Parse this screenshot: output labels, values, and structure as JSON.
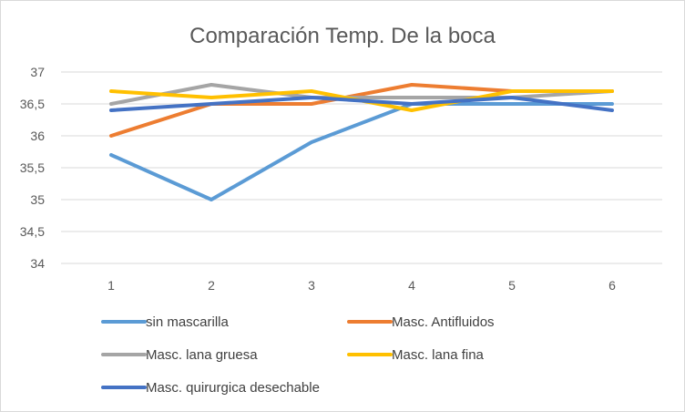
{
  "chart_data": {
    "type": "line",
    "title": "Comparación  Temp.  De la boca",
    "x": [
      1,
      2,
      3,
      4,
      5,
      6
    ],
    "x_tick_labels": [
      "1",
      "2",
      "3",
      "4",
      "5",
      "6"
    ],
    "ylim": [
      34,
      37
    ],
    "y_tick_labels": [
      "34",
      "34,5",
      "35",
      "35,5",
      "36",
      "36,5",
      "37"
    ],
    "y_ticks": [
      34,
      34.5,
      35,
      35.5,
      36,
      36.5,
      37
    ],
    "grid": true,
    "legend_position": "bottom",
    "series": [
      {
        "name": "sin mascarilla",
        "color": "#5B9BD5",
        "values": [
          35.7,
          35.0,
          35.9,
          36.5,
          36.5,
          36.5
        ]
      },
      {
        "name": "Masc. Antifluidos",
        "color": "#ED7D31",
        "values": [
          36.0,
          36.5,
          36.5,
          36.8,
          36.7,
          36.7
        ]
      },
      {
        "name": "Masc. lana gruesa",
        "color": "#A5A5A5",
        "values": [
          36.5,
          36.8,
          36.6,
          36.6,
          36.6,
          36.7
        ]
      },
      {
        "name": "Masc. lana fina",
        "color": "#FFC000",
        "values": [
          36.7,
          36.6,
          36.7,
          36.4,
          36.7,
          36.7
        ]
      },
      {
        "name": "Masc. quirurgica desechable",
        "color": "#4472C4",
        "values": [
          36.4,
          36.5,
          36.6,
          36.5,
          36.6,
          36.4
        ]
      }
    ]
  }
}
